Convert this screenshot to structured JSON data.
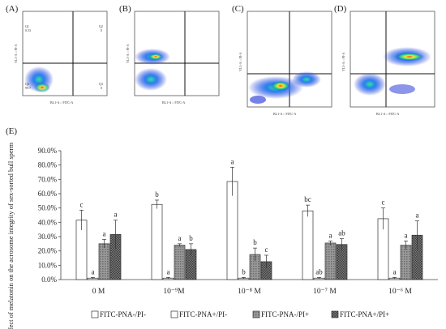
{
  "panels": [
    {
      "letter": "(A)",
      "quadrants": [
        "Q1\n0.33",
        "Q2\n0",
        "Q4\n99.7",
        "Q3\n0"
      ],
      "ylabel": "YL1-A :: PI-A",
      "xlabel": "BL1-A :: FITC-A"
    },
    {
      "letter": "(B)",
      "ylabel": "YL1-A :: PI-A",
      "xlabel": "BL1-A :: FITC-A"
    },
    {
      "letter": "(C)",
      "ylabel": "YL1-A :: PI-A",
      "xlabel": "BL1-A :: FITC-A"
    },
    {
      "letter": "(D)",
      "ylabel": "YL1-A :: PI-A",
      "xlabel": "BL1-A :: FITC-A"
    }
  ],
  "panel_e_letter": "(E)",
  "chart_data": {
    "type": "bar",
    "ylabel": "Effect of melatonin on the acrosome integrity of sex-sorted bull sperm",
    "ylim": [
      0,
      90
    ],
    "yticks": [
      "0.0%",
      "10.0%",
      "20.0%",
      "30.0%",
      "40.0%",
      "50.0%",
      "60.0%",
      "70.0%",
      "80.0%",
      "90.0%"
    ],
    "categories": [
      "0 M",
      "10⁻⁹M",
      "10⁻⁸ M",
      "10⁻⁷ M",
      "10⁻⁶ M"
    ],
    "series": [
      {
        "name": "FITC-PNA-/PI-",
        "fill": "#ffffff",
        "values": [
          41.5,
          52.5,
          68.5,
          48,
          42.5
        ],
        "errors": [
          7,
          3,
          10,
          4,
          7.5
        ],
        "letters": [
          "c",
          "b",
          "a",
          "bc",
          "c"
        ]
      },
      {
        "name": "FITC-PNA+/PI-",
        "fill": "#ffffff",
        "values": [
          1,
          1,
          1,
          1,
          1
        ],
        "errors": [
          0.5,
          0.5,
          0.5,
          0.5,
          0.5
        ],
        "letters": [
          "a",
          "a",
          "b",
          "ab",
          "a"
        ]
      },
      {
        "name": "FITC-PNA-/PI+",
        "fill": "#8a8a8a",
        "values": [
          25,
          24,
          17.5,
          25.5,
          24
        ],
        "errors": [
          3,
          1,
          4.5,
          1.5,
          3
        ],
        "letters": [
          "a",
          "a",
          "b",
          "a",
          "a"
        ]
      },
      {
        "name": "FITC-PNA+/PI+",
        "fill": "#606060",
        "values": [
          31.5,
          21,
          12.5,
          24.5,
          31
        ],
        "errors": [
          10,
          4,
          4.5,
          4,
          10
        ],
        "letters": [
          "a",
          "b",
          "c",
          "ab",
          "a"
        ]
      }
    ]
  }
}
